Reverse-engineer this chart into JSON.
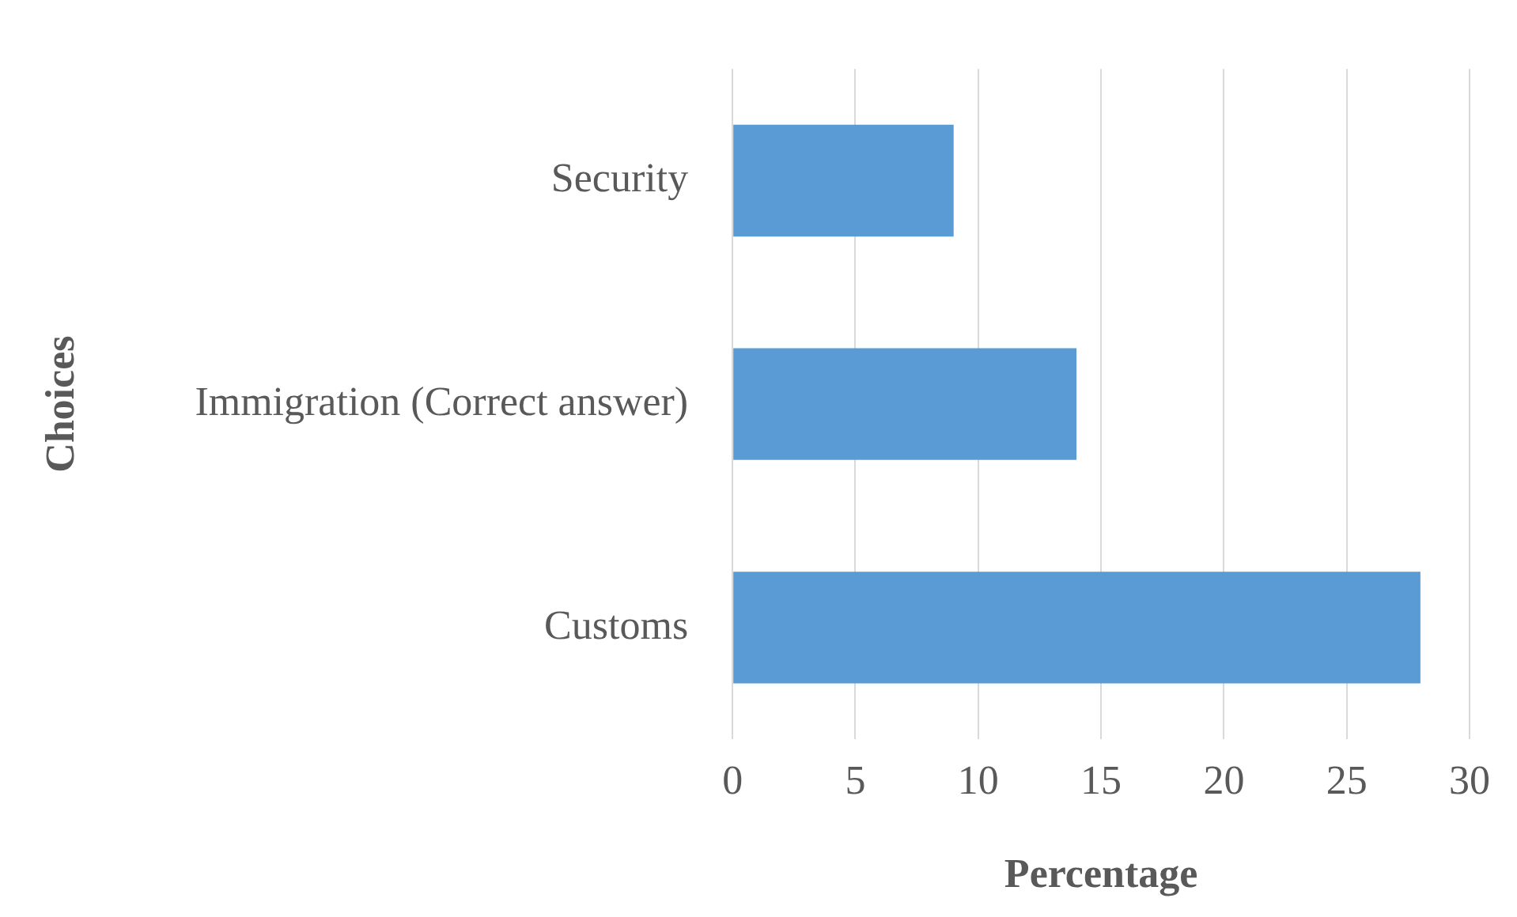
{
  "chart_data": {
    "type": "bar",
    "orientation": "horizontal",
    "xlabel": "Percentage",
    "ylabel": "Choices",
    "categories": [
      "Security",
      "Immigration (Correct answer)",
      "Customs"
    ],
    "values": [
      9,
      14,
      28
    ],
    "color": "#5b9bd5",
    "xlim": [
      0,
      30
    ],
    "xticks": [
      0,
      5,
      10,
      15,
      20,
      25,
      30
    ],
    "grid": "x",
    "legend": false
  }
}
